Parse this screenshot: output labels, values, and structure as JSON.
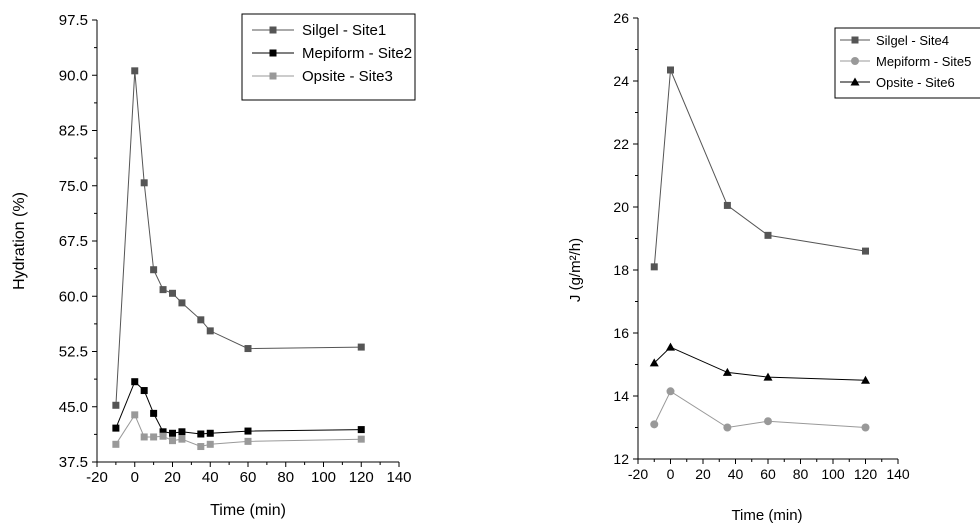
{
  "chart_data": [
    {
      "type": "line",
      "title": "",
      "xlabel": "Time (min)",
      "ylabel": "Hydration (%)",
      "xlim": [
        -20,
        140
      ],
      "ylim": [
        37.5,
        97.5
      ],
      "x_ticks": [
        -20,
        0,
        20,
        40,
        60,
        80,
        100,
        120,
        140
      ],
      "y_ticks": [
        37.5,
        45.0,
        52.5,
        60.0,
        67.5,
        75.0,
        82.5,
        90.0,
        97.5
      ],
      "x_tick_labels": [
        "-20",
        "0",
        "20",
        "40",
        "60",
        "80",
        "100",
        "120",
        "140"
      ],
      "y_tick_labels": [
        "37.5",
        "45.0",
        "52.5",
        "60.0",
        "67.5",
        "75.0",
        "82.5",
        "90.0",
        "97.5"
      ],
      "grid": false,
      "legend_position": "top-right",
      "series": [
        {
          "name": "Silgel - Site1",
          "color": "#555555",
          "marker": "square",
          "x": [
            -10,
            0,
            5,
            10,
            15,
            20,
            25,
            35,
            40,
            60,
            120
          ],
          "y": [
            45.2,
            90.6,
            75.4,
            63.6,
            60.9,
            60.4,
            59.1,
            56.8,
            55.3,
            52.9,
            53.1
          ]
        },
        {
          "name": "Mepiform - Site2",
          "color": "#000000",
          "marker": "square",
          "x": [
            -10,
            0,
            5,
            10,
            15,
            20,
            25,
            35,
            40,
            60,
            120
          ],
          "y": [
            42.1,
            48.4,
            47.2,
            44.1,
            41.6,
            41.4,
            41.6,
            41.3,
            41.4,
            41.7,
            41.9
          ]
        },
        {
          "name": "Opsite - Site3",
          "color": "#999999",
          "marker": "square",
          "x": [
            -10,
            0,
            5,
            10,
            15,
            20,
            25,
            35,
            40,
            60,
            120
          ],
          "y": [
            39.9,
            43.9,
            40.9,
            40.9,
            41.0,
            40.4,
            40.6,
            39.6,
            39.9,
            40.3,
            40.6
          ]
        }
      ]
    },
    {
      "type": "line",
      "title": "",
      "xlabel": "Time (min)",
      "ylabel": "J (g/m²/h)",
      "xlim": [
        -20,
        140
      ],
      "ylim": [
        12,
        26
      ],
      "x_ticks": [
        -20,
        0,
        20,
        40,
        60,
        80,
        100,
        120,
        140
      ],
      "y_ticks": [
        12,
        14,
        16,
        18,
        20,
        22,
        24,
        26
      ],
      "x_tick_labels": [
        "-20",
        "0",
        "20",
        "40",
        "60",
        "80",
        "100",
        "120",
        "140"
      ],
      "y_tick_labels": [
        "12",
        "14",
        "16",
        "18",
        "20",
        "22",
        "24",
        "26"
      ],
      "grid": false,
      "legend_position": "top-right",
      "series": [
        {
          "name": "Silgel - Site4",
          "color": "#555555",
          "marker": "square",
          "x": [
            -10,
            0,
            35,
            60,
            120
          ],
          "y": [
            18.1,
            24.35,
            20.05,
            19.1,
            18.6
          ]
        },
        {
          "name": "Mepiform - Site5",
          "color": "#999999",
          "marker": "circle",
          "x": [
            -10,
            0,
            35,
            60,
            120
          ],
          "y": [
            13.1,
            14.15,
            13.0,
            13.2,
            13.0
          ]
        },
        {
          "name": "Opsite - Site6",
          "color": "#000000",
          "marker": "triangle",
          "x": [
            -10,
            0,
            35,
            60,
            120
          ],
          "y": [
            15.05,
            15.55,
            14.75,
            14.6,
            14.5
          ]
        }
      ]
    }
  ]
}
